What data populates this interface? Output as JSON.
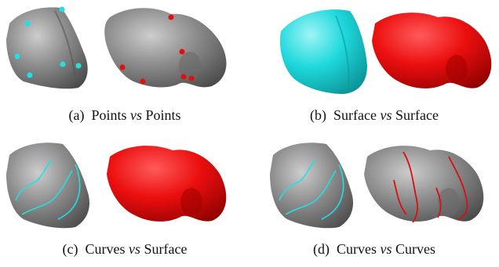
{
  "colors": {
    "mesh_gray": "#8c8c8c",
    "mesh_shadow": "#4e4e4e",
    "mesh_highlight": "#c9c9c9",
    "surface_cyan": "#19d8dc",
    "surface_red": "#ee0d0d",
    "marker_cyan": "#21e0e4",
    "marker_red": "#e01010"
  },
  "panels": [
    {
      "tag": "(a)",
      "left": "Points",
      "vs": "vs",
      "right": "Points"
    },
    {
      "tag": "(b)",
      "left": "Surface",
      "vs": "vs",
      "right": "Surface"
    },
    {
      "tag": "(c)",
      "left": "Curves",
      "vs": "vs",
      "right": "Surface"
    },
    {
      "tag": "(d)",
      "left": "Curves",
      "vs": "vs",
      "right": "Curves"
    }
  ]
}
